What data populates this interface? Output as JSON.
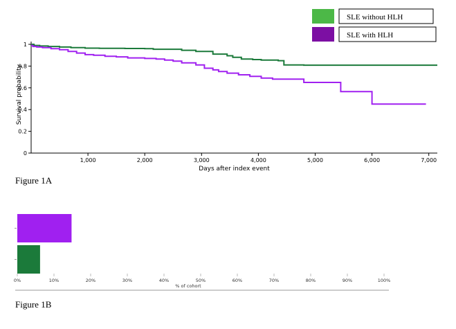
{
  "legend": {
    "items": [
      {
        "label": "SLE without HLH",
        "color": "#4cb847"
      },
      {
        "label": "SLE with HLH",
        "color": "#7c0fa3"
      }
    ]
  },
  "captions": {
    "fig_a": "Figure 1A",
    "fig_b": "Figure 1B"
  },
  "chart_data": [
    {
      "type": "line",
      "subtype": "kaplan-meier step",
      "xlabel": "Days after index event",
      "ylabel": "Survival probability",
      "xlim": [
        0,
        7150
      ],
      "ylim": [
        0,
        1
      ],
      "xticks": [
        "1,000",
        "2,000",
        "3,000",
        "4,000",
        "5,000",
        "6,000",
        "7,000"
      ],
      "yticks": [
        "0",
        "0.2",
        "0.4",
        "0.6",
        "0.8",
        "1"
      ],
      "grid": false,
      "series": [
        {
          "name": "SLE without HLH",
          "color": "#1b7a3a",
          "x": [
            0,
            50,
            150,
            300,
            500,
            700,
            950,
            1200,
            1650,
            2000,
            2150,
            2650,
            2900,
            3200,
            3450,
            3550,
            3700,
            3900,
            4050,
            4350,
            4450,
            4800,
            5500,
            6500,
            7150
          ],
          "y": [
            1.0,
            0.99,
            0.985,
            0.98,
            0.975,
            0.97,
            0.965,
            0.963,
            0.962,
            0.96,
            0.955,
            0.945,
            0.935,
            0.91,
            0.895,
            0.88,
            0.865,
            0.86,
            0.855,
            0.85,
            0.81,
            0.808,
            0.808,
            0.808,
            0.808
          ]
        },
        {
          "name": "SLE with HLH",
          "color": "#a020f0",
          "x": [
            0,
            30,
            100,
            200,
            350,
            500,
            650,
            800,
            950,
            1100,
            1300,
            1500,
            1700,
            2000,
            2200,
            2350,
            2500,
            2650,
            2900,
            3050,
            3200,
            3300,
            3450,
            3650,
            3850,
            4050,
            4250,
            4800,
            5450,
            6000,
            6950
          ],
          "y": [
            0.99,
            0.98,
            0.975,
            0.97,
            0.96,
            0.95,
            0.935,
            0.92,
            0.905,
            0.9,
            0.89,
            0.885,
            0.875,
            0.87,
            0.865,
            0.855,
            0.845,
            0.83,
            0.81,
            0.78,
            0.765,
            0.75,
            0.735,
            0.72,
            0.705,
            0.69,
            0.68,
            0.65,
            0.565,
            0.45,
            0.45
          ]
        }
      ]
    },
    {
      "type": "bar",
      "orientation": "horizontal",
      "xlabel": "% of cohort",
      "xlim": [
        0,
        100
      ],
      "xticks": [
        "0%",
        "10%",
        "20%",
        "30%",
        "40%",
        "50%",
        "60%",
        "70%",
        "80%",
        "90%",
        "100%"
      ],
      "series": [
        {
          "color": "#a020f0",
          "value": 14.8
        },
        {
          "color": "#1b7a3a",
          "value": 6.2
        }
      ]
    }
  ]
}
